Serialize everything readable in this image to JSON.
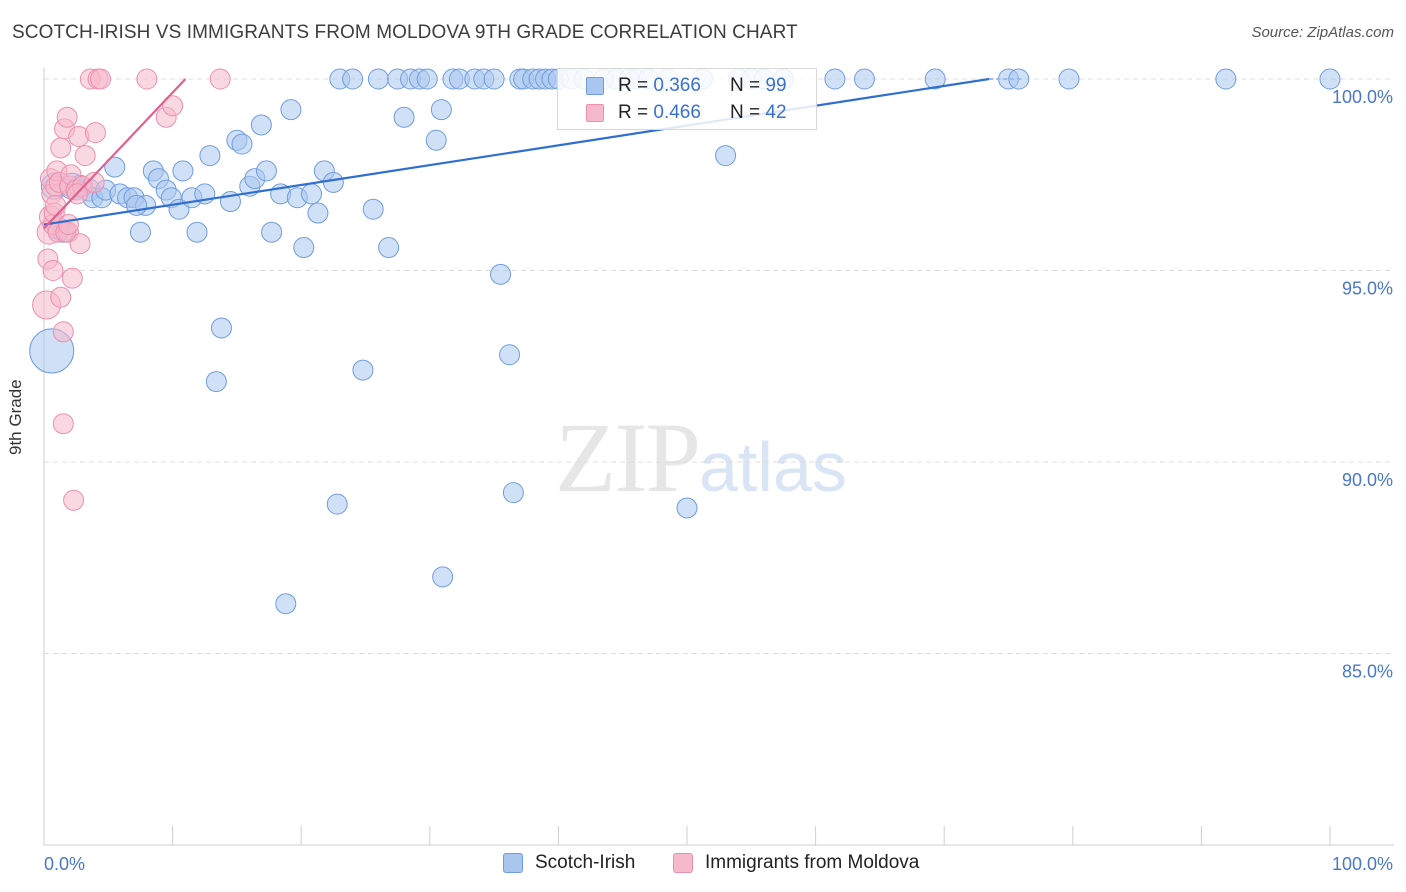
{
  "header": {
    "title": "SCOTCH-IRISH VS IMMIGRANTS FROM MOLDOVA 9TH GRADE CORRELATION CHART",
    "source": "Source: ZipAtlas.com"
  },
  "watermark": {
    "zip": "ZIP",
    "atlas": "atlas"
  },
  "legend": {
    "rows": [
      {
        "r_label": "R = ",
        "r_value": "0.366",
        "n_label": "N = ",
        "n_value": "99"
      },
      {
        "r_label": "R = ",
        "r_value": "0.466",
        "n_label": "N = ",
        "n_value": "42"
      }
    ]
  },
  "bottom_legend": {
    "blue": "Scotch-Irish",
    "pink": "Immigrants from Moldova"
  },
  "colors": {
    "blue_fill": "#a9c6ef",
    "blue_stroke": "#6f9de0",
    "blue_line": "#2f6fd0",
    "pink_fill": "#f6b8cb",
    "pink_stroke": "#ec8fae",
    "pink_line": "#e0608f",
    "grid": "#dcdcdc",
    "tick_text": "#4a78c8"
  },
  "chart_data": {
    "type": "scatter",
    "title": "SCOTCH-IRISH VS IMMIGRANTS FROM MOLDOVA 9TH GRADE CORRELATION CHART",
    "xlabel": "",
    "ylabel": "9th Grade",
    "xlim": [
      0,
      100
    ],
    "ylim": [
      80,
      100.4
    ],
    "x_tick_labels": [
      {
        "value": 0,
        "label": "0.0%"
      },
      {
        "value": 100,
        "label": "100.0%"
      }
    ],
    "y_tick_labels": [
      {
        "value": 100,
        "label": "100.0%"
      },
      {
        "value": 95,
        "label": "95.0%"
      },
      {
        "value": 90,
        "label": "90.0%"
      },
      {
        "value": 85,
        "label": "85.0%"
      }
    ],
    "series": [
      {
        "name": "Scotch-Irish",
        "color": "blue",
        "trend": {
          "x0": 0,
          "y0": 96.2,
          "x1": 73.5,
          "y1": 100
        },
        "points": [
          [
            0.6,
            92.9,
            22
          ],
          [
            0.8,
            97.2,
            13
          ],
          [
            1.1,
            96.1,
            11
          ],
          [
            1.5,
            96.0,
            10
          ],
          [
            2.2,
            97.2,
            13
          ],
          [
            2.8,
            97.2,
            11
          ],
          [
            3.5,
            97.1,
            11
          ],
          [
            3.8,
            96.9,
            10
          ],
          [
            4.5,
            96.9,
            10
          ],
          [
            4.8,
            97.1,
            10
          ],
          [
            5.5,
            97.7,
            10
          ],
          [
            5.9,
            97.0,
            10
          ],
          [
            6.5,
            96.9,
            10
          ],
          [
            7.0,
            96.9,
            10
          ],
          [
            7.5,
            96.0,
            10
          ],
          [
            7.9,
            96.7,
            10
          ],
          [
            8.5,
            97.6,
            10
          ],
          [
            8.9,
            97.4,
            10
          ],
          [
            9.5,
            97.1,
            10
          ],
          [
            9.9,
            96.9,
            10
          ],
          [
            10.5,
            96.6,
            10
          ],
          [
            10.8,
            97.6,
            10
          ],
          [
            11.5,
            96.9,
            10
          ],
          [
            11.9,
            96.0,
            10
          ],
          [
            12.5,
            97.0,
            10
          ],
          [
            12.9,
            98.0,
            10
          ],
          [
            13.8,
            93.5,
            10
          ],
          [
            13.4,
            92.1,
            10
          ],
          [
            14.5,
            96.8,
            10
          ],
          [
            15.0,
            98.4,
            10
          ],
          [
            15.4,
            98.3,
            10
          ],
          [
            16.0,
            97.2,
            10
          ],
          [
            16.4,
            97.4,
            10
          ],
          [
            16.9,
            98.8,
            10
          ],
          [
            17.3,
            97.6,
            10
          ],
          [
            17.7,
            96.0,
            10
          ],
          [
            18.4,
            97.0,
            10
          ],
          [
            18.8,
            86.3,
            10
          ],
          [
            19.2,
            99.2,
            10
          ],
          [
            19.7,
            96.9,
            10
          ],
          [
            20.2,
            95.6,
            10
          ],
          [
            20.8,
            97.0,
            10
          ],
          [
            21.3,
            96.5,
            10
          ],
          [
            21.8,
            97.6,
            10
          ],
          [
            22.5,
            97.3,
            10
          ],
          [
            22.8,
            88.9,
            10
          ],
          [
            23.0,
            100,
            10
          ],
          [
            24.0,
            100,
            10
          ],
          [
            24.8,
            92.4,
            10
          ],
          [
            25.6,
            96.6,
            10
          ],
          [
            26.0,
            100,
            10
          ],
          [
            26.8,
            95.6,
            10
          ],
          [
            27.5,
            100,
            10
          ],
          [
            28.0,
            99.0,
            10
          ],
          [
            28.5,
            100,
            10
          ],
          [
            29.2,
            100,
            10
          ],
          [
            29.8,
            100,
            10
          ],
          [
            30.5,
            98.4,
            10
          ],
          [
            30.9,
            99.2,
            10
          ],
          [
            31.0,
            87.0,
            10
          ],
          [
            31.8,
            100,
            10
          ],
          [
            32.3,
            100,
            10
          ],
          [
            33.5,
            100,
            10
          ],
          [
            34.2,
            100,
            10
          ],
          [
            35.0,
            100,
            10
          ],
          [
            35.5,
            94.9,
            10
          ],
          [
            36.2,
            92.8,
            10
          ],
          [
            36.5,
            89.2,
            10
          ],
          [
            37.0,
            100,
            10
          ],
          [
            37.3,
            100,
            10
          ],
          [
            38.0,
            100,
            10
          ],
          [
            38.5,
            100,
            10
          ],
          [
            39.0,
            100,
            10
          ],
          [
            39.5,
            100,
            10
          ],
          [
            40.0,
            100,
            10
          ],
          [
            41.0,
            100,
            10
          ],
          [
            42.0,
            100,
            10
          ],
          [
            43.5,
            100,
            10
          ],
          [
            44.5,
            100,
            10
          ],
          [
            45.5,
            100,
            10
          ],
          [
            46.0,
            100,
            10
          ],
          [
            47.0,
            100,
            10
          ],
          [
            48.5,
            100,
            10
          ],
          [
            50.0,
            88.8,
            10
          ],
          [
            51.2,
            100,
            10
          ],
          [
            53.0,
            98.0,
            10
          ],
          [
            54.0,
            100,
            10
          ],
          [
            55.0,
            100,
            10
          ],
          [
            56.0,
            100,
            10
          ],
          [
            57.5,
            100,
            10
          ],
          [
            61.5,
            100,
            10
          ],
          [
            63.8,
            100,
            10
          ],
          [
            69.3,
            100,
            10
          ],
          [
            75.0,
            100,
            10
          ],
          [
            75.8,
            100,
            10
          ],
          [
            79.7,
            100,
            10
          ],
          [
            91.9,
            100,
            10
          ],
          [
            100.0,
            100,
            10
          ],
          [
            7.2,
            96.7,
            10
          ]
        ]
      },
      {
        "name": "Immigrants from Moldova",
        "color": "pink",
        "trend": {
          "x0": 0,
          "y0": 96.1,
          "x1": 11.0,
          "y1": 100
        },
        "points": [
          [
            0.2,
            94.1,
            14
          ],
          [
            0.3,
            95.3,
            10
          ],
          [
            0.4,
            96.0,
            12
          ],
          [
            0.5,
            96.4,
            11
          ],
          [
            0.5,
            97.4,
            10
          ],
          [
            0.6,
            97.0,
            10
          ],
          [
            0.7,
            96.2,
            10
          ],
          [
            0.7,
            95.0,
            10
          ],
          [
            0.8,
            96.5,
            10
          ],
          [
            0.9,
            97.2,
            10
          ],
          [
            1.0,
            97.6,
            10
          ],
          [
            1.1,
            96.0,
            10
          ],
          [
            1.2,
            97.3,
            10
          ],
          [
            1.3,
            98.2,
            10
          ],
          [
            1.3,
            94.3,
            10
          ],
          [
            1.5,
            93.4,
            10
          ],
          [
            1.5,
            91.0,
            10
          ],
          [
            1.6,
            98.7,
            10
          ],
          [
            1.8,
            99.0,
            10
          ],
          [
            1.9,
            96.0,
            10
          ],
          [
            2.0,
            97.2,
            10
          ],
          [
            2.1,
            97.5,
            10
          ],
          [
            2.2,
            94.8,
            10
          ],
          [
            2.3,
            89.0,
            10
          ],
          [
            2.5,
            97.1,
            10
          ],
          [
            2.7,
            98.5,
            10
          ],
          [
            2.8,
            95.7,
            10
          ],
          [
            3.0,
            97.2,
            10
          ],
          [
            3.2,
            98.0,
            10
          ],
          [
            3.6,
            100,
            10
          ],
          [
            3.9,
            97.3,
            10
          ],
          [
            4.0,
            98.6,
            10
          ],
          [
            4.2,
            100,
            10
          ],
          [
            4.4,
            100,
            10
          ],
          [
            8.0,
            100,
            10
          ],
          [
            9.5,
            99.0,
            10
          ],
          [
            10.0,
            99.3,
            10
          ],
          [
            13.7,
            100,
            10
          ],
          [
            1.7,
            96.0,
            10
          ],
          [
            0.9,
            96.7,
            10
          ],
          [
            1.9,
            96.2,
            10
          ],
          [
            2.6,
            97.0,
            10
          ]
        ]
      }
    ]
  }
}
